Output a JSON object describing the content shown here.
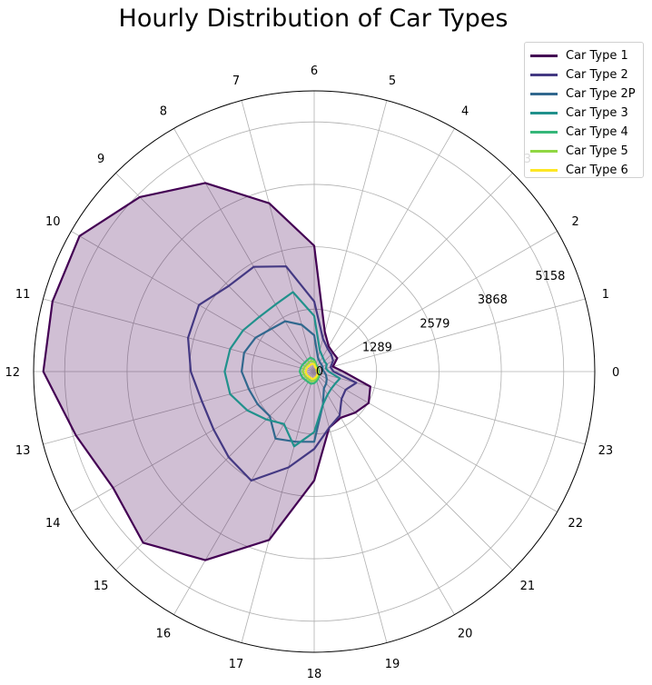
{
  "chart_data": {
    "type": "radar",
    "title": "Hourly Distribution of Car Types",
    "angle_labels": [
      "0",
      "1",
      "2",
      "3",
      "4",
      "5",
      "6",
      "7",
      "8",
      "9",
      "10",
      "11",
      "12",
      "13",
      "14",
      "15",
      "16",
      "17",
      "18",
      "19",
      "20",
      "21",
      "22",
      "23"
    ],
    "radial_ticks": [
      0,
      1289,
      2579,
      3868,
      5158
    ],
    "rmax": 5800,
    "fill_series": "Car Type 1",
    "legend_position": "upper-right",
    "grid": true,
    "series": [
      {
        "name": "Car Type 1",
        "color": "#440154",
        "values": [
          600,
          400,
          550,
          550,
          600,
          850,
          2600,
          3600,
          4500,
          5100,
          5600,
          5600,
          5600,
          5100,
          4800,
          5000,
          4500,
          3600,
          2250,
          1200,
          1100,
          1200,
          1300,
          1200
        ]
      },
      {
        "name": "Car Type 2",
        "color": "#443983",
        "values": [
          400,
          350,
          450,
          500,
          550,
          700,
          1450,
          2250,
          2500,
          2500,
          2750,
          2700,
          2550,
          2400,
          2400,
          2500,
          2600,
          2050,
          1600,
          1200,
          1050,
          800,
          750,
          900
        ]
      },
      {
        "name": "Car Type 2P",
        "color": "#31688e",
        "values": [
          200,
          180,
          200,
          210,
          230,
          300,
          750,
          1000,
          1200,
          1250,
          1400,
          1500,
          1500,
          1400,
          1350,
          1300,
          1600,
          1500,
          1450,
          700,
          400,
          350,
          300,
          250
        ]
      },
      {
        "name": "Car Type 3",
        "color": "#21918c",
        "values": [
          300,
          250,
          300,
          300,
          350,
          450,
          1150,
          1700,
          1600,
          1600,
          1700,
          1800,
          1850,
          1800,
          1600,
          1400,
          1250,
          1600,
          1250,
          700,
          550,
          500,
          500,
          550
        ]
      },
      {
        "name": "Car Type 4",
        "color": "#35b779",
        "values": [
          100,
          90,
          100,
          110,
          120,
          150,
          250,
          300,
          280,
          270,
          280,
          290,
          300,
          280,
          270,
          250,
          250,
          260,
          240,
          200,
          160,
          140,
          120,
          110
        ]
      },
      {
        "name": "Car Type 5",
        "color": "#90d743",
        "values": [
          80,
          70,
          90,
          90,
          100,
          120,
          200,
          230,
          220,
          210,
          220,
          230,
          240,
          220,
          210,
          200,
          200,
          210,
          190,
          160,
          130,
          110,
          100,
          90
        ]
      },
      {
        "name": "Car Type 6",
        "color": "#fde725",
        "values": [
          60,
          50,
          70,
          70,
          80,
          90,
          150,
          170,
          160,
          160,
          170,
          170,
          180,
          170,
          160,
          150,
          150,
          160,
          140,
          120,
          100,
          90,
          80,
          70
        ]
      }
    ]
  }
}
